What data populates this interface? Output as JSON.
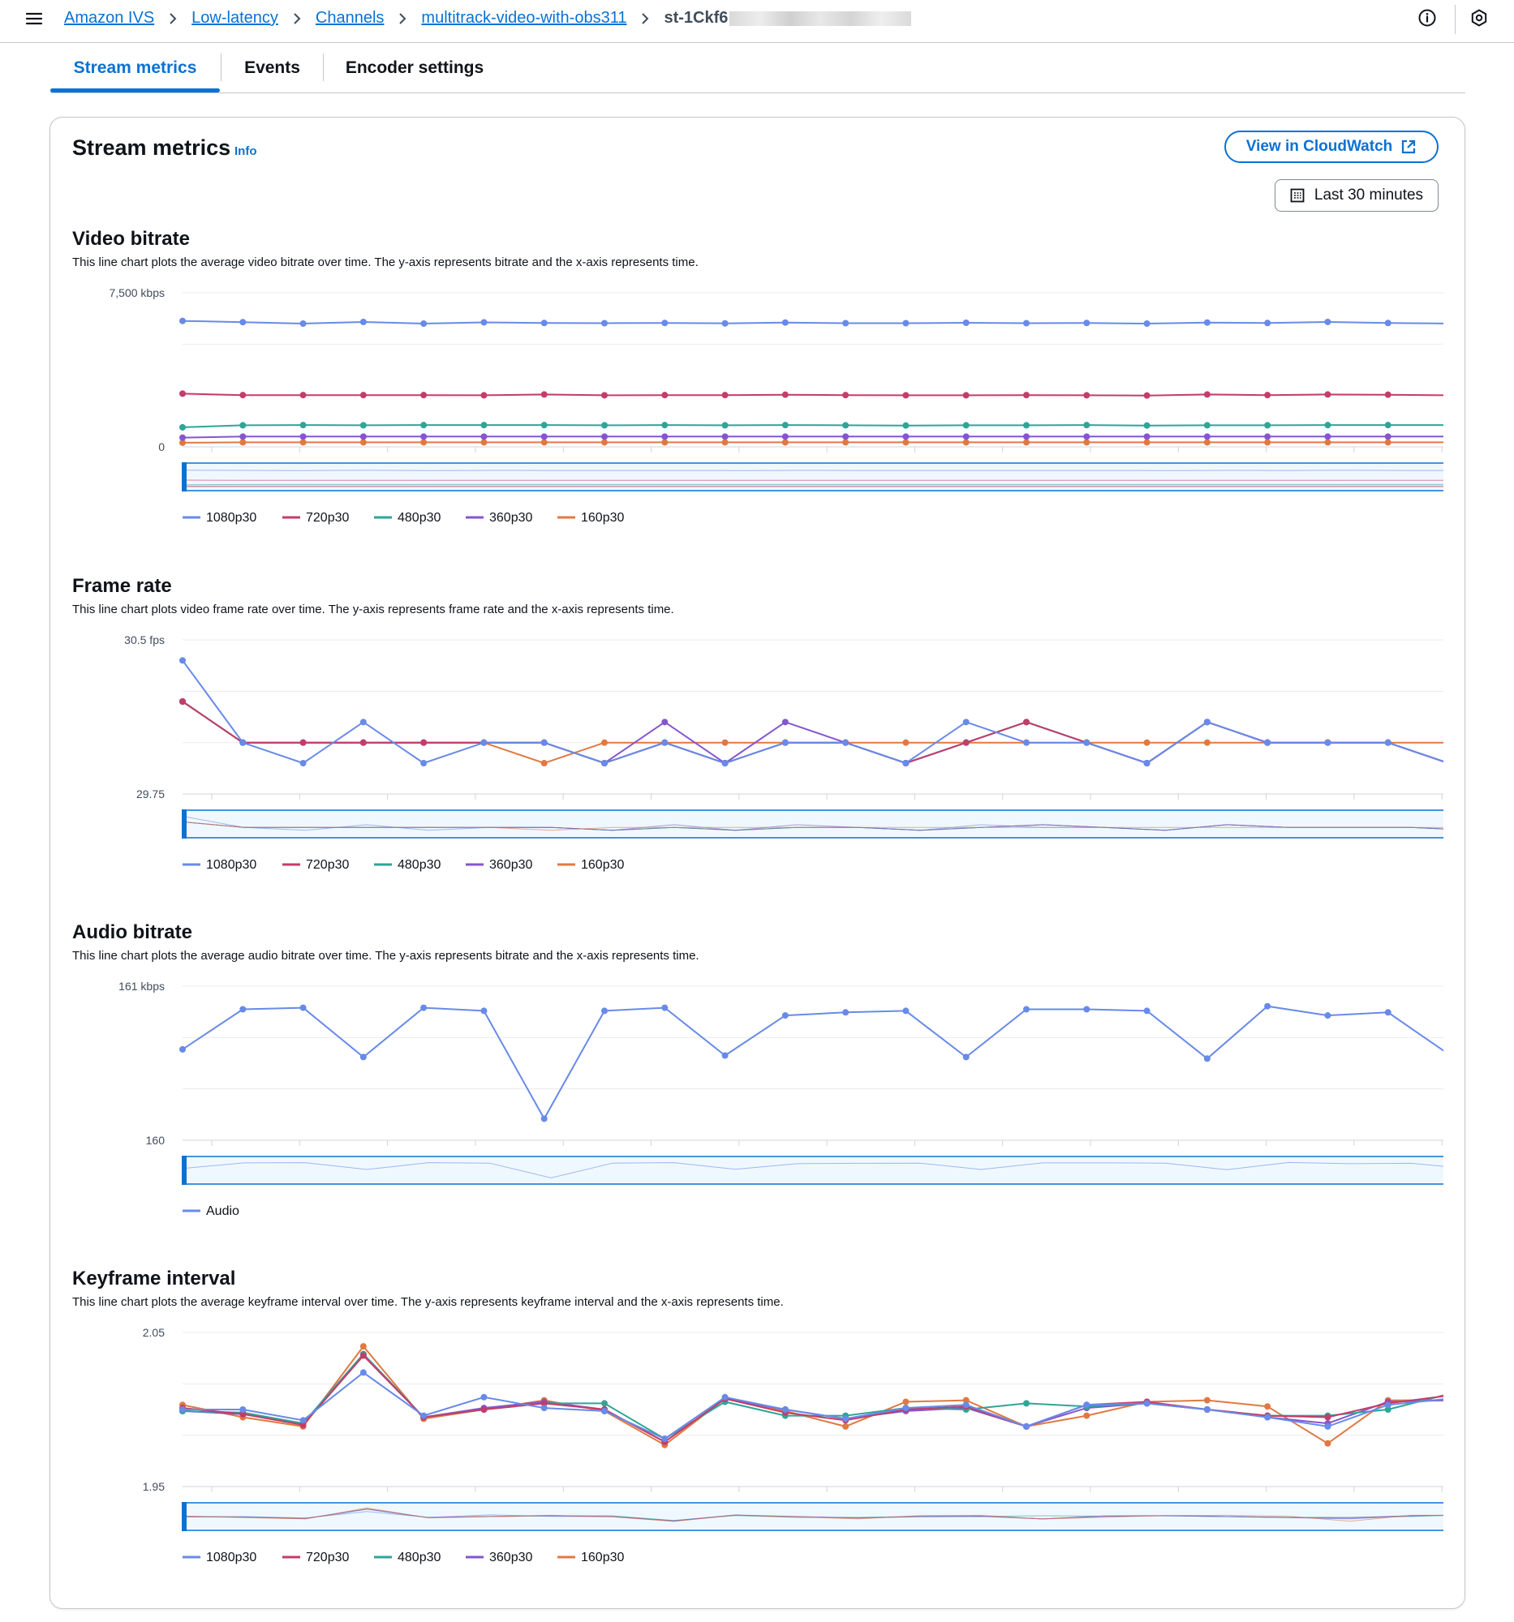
{
  "breadcrumbs": [
    "Amazon IVS",
    "Low-latency",
    "Channels",
    "multitrack-video-with-obs311"
  ],
  "breadcrumb_current": "st-1Ckf6",
  "tabs": [
    "Stream metrics",
    "Events",
    "Encoder settings"
  ],
  "panel": {
    "title": "Stream metrics",
    "info_label": "Info",
    "cloudwatch_label": "View in CloudWatch",
    "range_label": "Last 30 minutes"
  },
  "colors": {
    "1080p30": "#688ae8",
    "720p30": "#c33d69",
    "480p30": "#2ea597",
    "360p30": "#8456ce",
    "160p30": "#e07941",
    "Audio": "#688ae8"
  },
  "chart_data": [
    {
      "type": "line",
      "title": "Video bitrate",
      "description": "This line chart plots the average video bitrate over time. The y-axis represents bitrate and the x-axis represents time.",
      "y_top_label": "7,500 kbps",
      "y_bottom_label": "0",
      "ylim": [
        0,
        7500
      ],
      "series": [
        {
          "name": "1080p30",
          "values": [
            6130,
            6070,
            6000,
            6080,
            6000,
            6060,
            6030,
            6020,
            6030,
            6010,
            6050,
            6020,
            6020,
            6040,
            6020,
            6030,
            6000,
            6050,
            6030,
            6080,
            6030,
            6000
          ]
        },
        {
          "name": "720p30",
          "values": [
            2590,
            2520,
            2520,
            2520,
            2520,
            2510,
            2550,
            2510,
            2520,
            2520,
            2540,
            2520,
            2510,
            2510,
            2520,
            2510,
            2500,
            2550,
            2520,
            2550,
            2540,
            2510
          ]
        },
        {
          "name": "480p30",
          "values": [
            950,
            1050,
            1060,
            1050,
            1060,
            1060,
            1060,
            1050,
            1060,
            1050,
            1060,
            1050,
            1040,
            1050,
            1050,
            1060,
            1040,
            1050,
            1050,
            1060,
            1060,
            1060
          ]
        },
        {
          "name": "360p30",
          "values": [
            450,
            500,
            500,
            500,
            500,
            500,
            500,
            500,
            500,
            500,
            500,
            500,
            500,
            500,
            500,
            500,
            500,
            500,
            500,
            500,
            500,
            500
          ]
        },
        {
          "name": "160p30",
          "values": [
            200,
            220,
            220,
            220,
            220,
            220,
            220,
            220,
            220,
            220,
            220,
            220,
            220,
            220,
            220,
            220,
            220,
            220,
            220,
            220,
            220,
            220
          ]
        }
      ]
    },
    {
      "type": "line",
      "title": "Frame rate",
      "description": "This line chart plots video frame rate over time. The y-axis represents frame rate and the x-axis represents time.",
      "y_top_label": "30.5 fps",
      "y_bottom_label": "29.75",
      "ylim": [
        29.75,
        30.5
      ],
      "series": [
        {
          "name": "1080p30",
          "values": [
            30.4,
            30.0,
            29.9,
            30.1,
            29.9,
            30.0,
            30.0,
            29.9,
            30.0,
            29.9,
            30.0,
            30.0,
            29.9,
            30.1,
            30.0,
            30.0,
            29.9,
            30.1,
            30.0,
            30.0,
            30.0,
            29.9
          ]
        },
        {
          "name": "720p30",
          "values": [
            30.2,
            30.0,
            30.0,
            30.0,
            30.0,
            30.0,
            30.0,
            29.9,
            30.0,
            29.9,
            30.0,
            30.0,
            29.9,
            30.0,
            30.1,
            30.0,
            29.9,
            30.1,
            30.0,
            30.0,
            30.0,
            29.9
          ]
        },
        {
          "name": "480p30",
          "values": [
            30.2,
            30.0,
            30.0,
            30.0,
            30.0,
            30.0,
            30.0,
            29.9,
            30.0,
            29.9,
            30.0,
            30.0,
            29.9,
            30.0,
            30.1,
            30.0,
            29.9,
            30.1,
            30.0,
            30.0,
            30.0,
            29.9
          ]
        },
        {
          "name": "360p30",
          "values": [
            30.2,
            30.0,
            30.0,
            30.0,
            30.0,
            30.0,
            30.0,
            29.9,
            30.1,
            29.9,
            30.1,
            30.0,
            29.9,
            30.0,
            30.1,
            30.0,
            29.9,
            30.1,
            30.0,
            30.0,
            30.0,
            29.9
          ]
        },
        {
          "name": "160p30",
          "values": [
            30.2,
            30.0,
            30.0,
            30.0,
            30.0,
            30.0,
            29.9,
            30.0,
            30.0,
            30.0,
            30.0,
            30.0,
            30.0,
            30.0,
            30.0,
            30.0,
            30.0,
            30.0,
            30.0,
            30.0,
            30.0,
            30.0
          ]
        }
      ]
    },
    {
      "type": "line",
      "title": "Audio bitrate",
      "description": "This line chart plots the average audio bitrate over time. The y-axis represents bitrate and the x-axis represents time.",
      "y_top_label": "161 kbps",
      "y_bottom_label": "160",
      "ylim": [
        160,
        161
      ],
      "series": [
        {
          "name": "Audio",
          "values": [
            160.59,
            160.85,
            160.86,
            160.54,
            160.86,
            160.84,
            160.14,
            160.84,
            160.86,
            160.55,
            160.81,
            160.83,
            160.84,
            160.54,
            160.85,
            160.85,
            160.84,
            160.53,
            160.87,
            160.81,
            160.83,
            160.56
          ]
        }
      ]
    },
    {
      "type": "line",
      "title": "Keyframe interval",
      "description": "This line chart plots the average keyframe interval over time. The y-axis represents keyframe interval and the x-axis represents time.",
      "y_top_label": "2.05",
      "y_bottom_label": "1.95",
      "ylim": [
        1.95,
        2.05
      ],
      "series": [
        {
          "name": "1080p30",
          "values": [
            2.0,
            2.0,
            1.993,
            2.024,
            1.996,
            2.008,
            2.001,
            1.999,
            1.981,
            2.008,
            2.0,
            1.994,
            2.001,
            2.003,
            1.989,
            2.003,
            2.004,
            2.0,
            1.995,
            1.989,
            2.003,
            2.007
          ]
        },
        {
          "name": "720p30",
          "values": [
            2.001,
            1.997,
            1.99,
            2.035,
            1.995,
            2.0,
            2.004,
            2.0,
            1.979,
            2.007,
            1.998,
            1.993,
            2.0,
            2.002,
            1.989,
            2.003,
            2.005,
            2.0,
            1.996,
            1.995,
            2.004,
            2.009
          ]
        },
        {
          "name": "480p30",
          "values": [
            1.999,
            1.998,
            1.991,
            2.036,
            1.995,
            2.0,
            2.004,
            2.004,
            1.981,
            2.005,
            1.996,
            1.996,
            2.001,
            2.0,
            2.004,
            2.002,
            2.004,
            2.0,
            1.996,
            1.996,
            2.0,
            2.01
          ]
        },
        {
          "name": "360p30",
          "values": [
            1.999,
            1.997,
            1.991,
            2.036,
            1.995,
            2.001,
            2.005,
            2.0,
            1.979,
            2.007,
            2.0,
            1.994,
            1.999,
            2.001,
            1.989,
            2.001,
            2.004,
            2.0,
            1.995,
            1.991,
            2.005,
            2.006
          ]
        },
        {
          "name": "160p30",
          "values": [
            2.003,
            1.995,
            1.989,
            2.041,
            1.994,
            2.0,
            2.006,
            1.999,
            1.977,
            2.007,
            1.999,
            1.989,
            2.005,
            2.006,
            1.989,
            1.996,
            2.005,
            2.006,
            2.002,
            1.978,
            2.006,
            2.006
          ]
        }
      ]
    }
  ]
}
